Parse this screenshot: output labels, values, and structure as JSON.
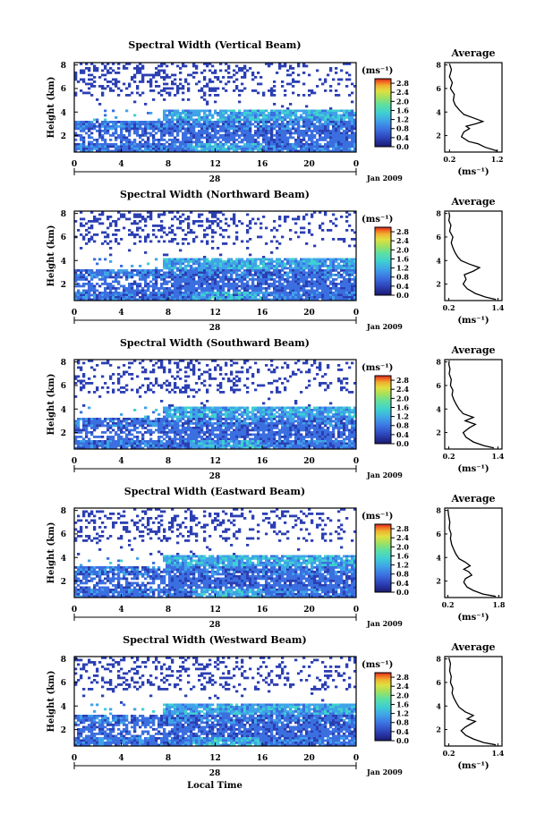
{
  "figure": {
    "xlabel": "Local Time",
    "date_label": "Jan 2009",
    "day_label": "28",
    "ylabel": "Height (km)",
    "unit_label": "(ms⁻¹)",
    "avg_title": "Average"
  },
  "chart_data": [
    {
      "type": "heatmap",
      "title": "Spectral Width (Vertical Beam)",
      "xlabel": "",
      "ylabel": "Height (km)",
      "x_ticks": [
        "0",
        "4",
        "8",
        "12",
        "16",
        "20",
        "0"
      ],
      "xlim": [
        0,
        24
      ],
      "y_ticks": [
        "2",
        "4",
        "6",
        "8"
      ],
      "ylim": [
        0.6,
        8.2
      ],
      "colorbar": {
        "ticks": [
          "0.0",
          "0.4",
          "0.8",
          "1.2",
          "1.6",
          "2.0",
          "2.4",
          "2.8"
        ],
        "range": [
          0,
          3.0
        ]
      },
      "data_description_blocks": [
        {
          "h0": 0.6,
          "h1": 1.4,
          "t0": 0,
          "t1": 24,
          "w": 0.6
        },
        {
          "h0": 1.4,
          "h1": 2.6,
          "t0": 0,
          "t1": 24,
          "w": 0.5
        },
        {
          "h0": 2.6,
          "h1": 3.2,
          "t0": 0,
          "t1": 24,
          "w": 0.7
        },
        {
          "h0": 3.2,
          "h1": 4.2,
          "t0": 7,
          "t1": 24,
          "w": 0.9
        },
        {
          "h0": 5.5,
          "h1": 8.2,
          "t0": 0,
          "t1": 24,
          "w": 0.3
        }
      ]
    },
    {
      "type": "heatmap",
      "title": "Spectral Width (Northward Beam)",
      "xlabel": "",
      "ylabel": "Height (km)",
      "x_ticks": [
        "0",
        "4",
        "8",
        "12",
        "16",
        "20",
        "0"
      ],
      "xlim": [
        0,
        24
      ],
      "y_ticks": [
        "2",
        "4",
        "6",
        "8"
      ],
      "ylim": [
        0.6,
        8.2
      ],
      "colorbar": {
        "ticks": [
          "0.0",
          "0.4",
          "0.8",
          "1.2",
          "1.6",
          "2.0",
          "2.4",
          "2.8"
        ],
        "range": [
          0,
          3.0
        ]
      }
    },
    {
      "type": "heatmap",
      "title": "Spectral Width (Southward Beam)",
      "xlabel": "",
      "ylabel": "Height (km)",
      "x_ticks": [
        "0",
        "4",
        "8",
        "12",
        "16",
        "20",
        "0"
      ],
      "xlim": [
        0,
        24
      ],
      "y_ticks": [
        "2",
        "4",
        "6",
        "8"
      ],
      "ylim": [
        0.6,
        8.2
      ],
      "colorbar": {
        "ticks": [
          "0.0",
          "0.4",
          "0.8",
          "1.2",
          "1.6",
          "2.0",
          "2.4",
          "2.8"
        ],
        "range": [
          0,
          3.0
        ]
      }
    },
    {
      "type": "heatmap",
      "title": "Spectral Width (Eastward Beam)",
      "xlabel": "",
      "ylabel": "Height (km)",
      "x_ticks": [
        "0",
        "4",
        "8",
        "12",
        "16",
        "20",
        "0"
      ],
      "xlim": [
        0,
        24
      ],
      "y_ticks": [
        "2",
        "4",
        "6",
        "8"
      ],
      "ylim": [
        0.6,
        8.2
      ],
      "colorbar": {
        "ticks": [
          "0.0",
          "0.4",
          "0.8",
          "1.2",
          "1.6",
          "2.0",
          "2.4",
          "2.8"
        ],
        "range": [
          0,
          3.0
        ]
      }
    },
    {
      "type": "heatmap",
      "title": "Spectral Width (Westward Beam)",
      "xlabel": "Local Time",
      "ylabel": "Height (km)",
      "x_ticks": [
        "0",
        "4",
        "8",
        "12",
        "16",
        "20",
        "0"
      ],
      "xlim": [
        0,
        24
      ],
      "y_ticks": [
        "2",
        "4",
        "6",
        "8"
      ],
      "ylim": [
        0.6,
        8.2
      ],
      "colorbar": {
        "ticks": [
          "0.0",
          "0.4",
          "0.8",
          "1.2",
          "1.6",
          "2.0",
          "2.4",
          "2.8"
        ],
        "range": [
          0,
          3.0
        ]
      }
    },
    {
      "type": "line",
      "title": "Average",
      "xlabel": "(ms⁻¹)",
      "x_ticks": [
        "0.2",
        "1.2"
      ],
      "xlim": [
        0.1,
        1.3
      ],
      "y_ticks": [
        "2",
        "4",
        "6",
        "8"
      ],
      "ylim": [
        0.6,
        8.2
      ],
      "x": [
        1.2,
        0.95,
        0.8,
        0.6,
        0.45,
        0.5,
        0.62,
        0.55,
        0.75,
        0.9,
        0.7,
        0.5,
        0.4,
        0.32,
        0.28,
        0.3,
        0.22,
        0.26,
        0.2,
        0.24,
        0.2
      ],
      "y": [
        0.7,
        1.0,
        1.3,
        1.5,
        1.9,
        2.3,
        2.6,
        2.8,
        3.0,
        3.2,
        3.5,
        3.8,
        4.2,
        4.6,
        5.0,
        5.5,
        6.0,
        6.5,
        7.0,
        7.6,
        8.1
      ]
    },
    {
      "type": "line",
      "title": "Average",
      "xlabel": "(ms⁻¹)",
      "x_ticks": [
        "0.2",
        "1.4"
      ],
      "xlim": [
        0.1,
        1.5
      ],
      "y_ticks": [
        "2",
        "4",
        "6",
        "8"
      ],
      "ylim": [
        0.6,
        8.2
      ],
      "x": [
        1.35,
        1.1,
        0.85,
        0.65,
        0.55,
        0.62,
        0.58,
        0.8,
        0.95,
        0.7,
        0.5,
        0.42,
        0.35,
        0.3,
        0.26,
        0.3,
        0.22,
        0.25,
        0.2,
        0.22,
        0.2
      ],
      "y": [
        0.7,
        0.9,
        1.2,
        1.6,
        2.0,
        2.4,
        2.8,
        3.1,
        3.4,
        3.7,
        4.0,
        4.3,
        4.7,
        5.1,
        5.5,
        6.0,
        6.5,
        7.0,
        7.4,
        7.8,
        8.1
      ]
    },
    {
      "type": "line",
      "title": "Average",
      "xlabel": "(ms⁻¹)",
      "x_ticks": [
        "0.2",
        "1.4"
      ],
      "xlim": [
        0.1,
        1.5
      ],
      "y_ticks": [
        "2",
        "4",
        "6",
        "8"
      ],
      "ylim": [
        0.6,
        8.2
      ],
      "x": [
        1.3,
        1.05,
        0.8,
        0.62,
        0.55,
        0.7,
        0.85,
        0.6,
        0.8,
        0.55,
        0.45,
        0.38,
        0.32,
        0.28,
        0.3,
        0.24,
        0.26,
        0.21,
        0.23,
        0.2,
        0.21
      ],
      "y": [
        0.7,
        0.9,
        1.2,
        1.6,
        2.0,
        2.4,
        2.7,
        3.0,
        3.3,
        3.6,
        4.0,
        4.4,
        4.8,
        5.2,
        5.6,
        6.0,
        6.5,
        7.0,
        7.4,
        7.8,
        8.1
      ]
    },
    {
      "type": "line",
      "title": "Average",
      "xlabel": "(ms⁻¹)",
      "x_ticks": [
        "0.2",
        "1.8"
      ],
      "xlim": [
        0.1,
        1.9
      ],
      "y_ticks": [
        "2",
        "4",
        "6",
        "8"
      ],
      "ylim": [
        0.6,
        8.2
      ],
      "x": [
        1.7,
        1.3,
        1.0,
        0.8,
        0.7,
        0.75,
        0.95,
        0.85,
        0.7,
        0.9,
        0.75,
        0.55,
        0.45,
        0.38,
        0.32,
        0.28,
        0.3,
        0.24,
        0.26,
        0.22,
        0.2
      ],
      "y": [
        0.7,
        0.9,
        1.2,
        1.5,
        1.9,
        2.2,
        2.5,
        2.8,
        3.0,
        3.3,
        3.6,
        3.9,
        4.3,
        4.7,
        5.1,
        5.6,
        6.0,
        6.5,
        7.0,
        7.6,
        8.1
      ]
    },
    {
      "type": "line",
      "title": "Average",
      "xlabel": "(ms⁻¹)",
      "x_ticks": [
        "0.2",
        "1.4"
      ],
      "xlim": [
        0.1,
        1.5
      ],
      "y_ticks": [
        "2",
        "4",
        "6",
        "8"
      ],
      "ylim": [
        0.6,
        8.2
      ],
      "x": [
        1.35,
        1.05,
        0.8,
        0.62,
        0.5,
        0.6,
        0.75,
        0.85,
        0.65,
        0.8,
        0.6,
        0.45,
        0.38,
        0.32,
        0.28,
        0.3,
        0.24,
        0.26,
        0.22,
        0.24,
        0.2
      ],
      "y": [
        0.7,
        0.9,
        1.2,
        1.5,
        1.9,
        2.2,
        2.5,
        2.7,
        2.9,
        3.2,
        3.5,
        3.9,
        4.3,
        4.7,
        5.1,
        5.5,
        6.0,
        6.5,
        7.0,
        7.6,
        8.1
      ]
    }
  ],
  "colors": {
    "colormap": [
      "#000000",
      "#1a1a6e",
      "#2b3fb3",
      "#3b6fe0",
      "#3fa3e8",
      "#3fd0d0",
      "#5fe0a0",
      "#a0e060",
      "#e0e040",
      "#f0b030",
      "#f06020",
      "#d02020"
    ]
  }
}
